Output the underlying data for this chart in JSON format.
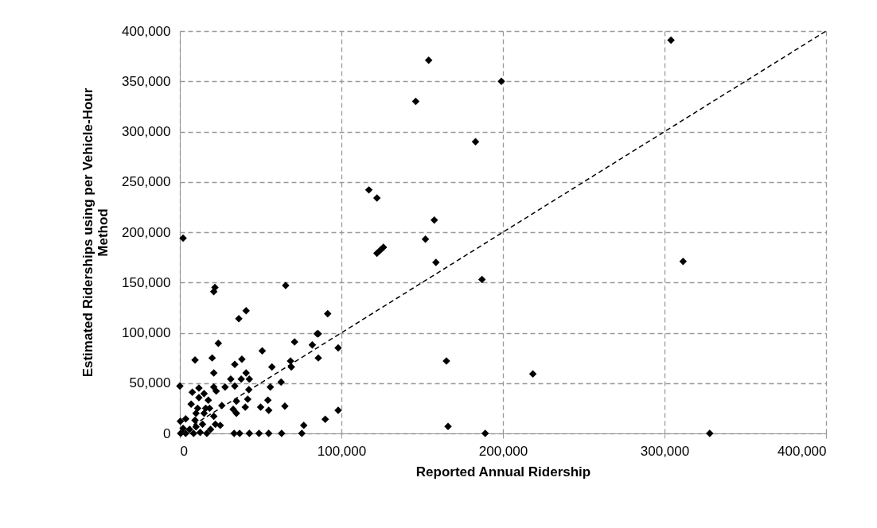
{
  "chart_data": {
    "type": "scatter",
    "xlabel": "Reported Annual Ridership",
    "ylabel": "Estimated Riderships using per Vehicle-Hour Method",
    "xlim": [
      0,
      400000
    ],
    "ylim": [
      0,
      400000
    ],
    "xticks": [
      0,
      {
        "value": 100000,
        "label": "100,000"
      },
      {
        "value": 200000,
        "label": "200,000"
      },
      {
        "value": 300000,
        "label": "300,000"
      },
      {
        "value": 400000,
        "label": "400,000"
      }
    ],
    "yticks": [
      0,
      {
        "value": 50000,
        "label": "50,000"
      },
      {
        "value": 100000,
        "label": "100,000"
      },
      {
        "value": 150000,
        "label": "150,000"
      },
      {
        "value": 200000,
        "label": "200,000"
      },
      {
        "value": 250000,
        "label": "250,000"
      },
      {
        "value": 300000,
        "label": "300,000"
      },
      {
        "value": 350000,
        "label": "350,000"
      },
      {
        "value": 400000,
        "label": "400,000"
      }
    ],
    "grid": true,
    "series": [
      {
        "color": "#000000",
        "marker": "diamond",
        "x": [
          2000,
          154000,
          199000,
          146000,
          183000,
          117000,
          122000,
          157500,
          152000,
          122000,
          124000,
          126000,
          158500,
          187000,
          304000,
          311500,
          91500,
          85700,
          98000,
          85700,
          165000,
          218500,
          90000,
          98000,
          166000,
          189000,
          328000,
          0,
          21000,
          21700,
          65500,
          36500,
          41000,
          23800,
          9400,
          20000,
          51000,
          71000,
          85000,
          82000,
          21000,
          34000,
          38400,
          41000,
          43000,
          38000,
          31500,
          34000,
          42700,
          42000,
          40500,
          35000,
          33000,
          35000,
          57000,
          56000,
          54500,
          55000,
          50000,
          68500,
          69000,
          62700,
          65000,
          28000,
          26000,
          25000,
          76700,
          75500,
          33600,
          37000,
          43000,
          49000,
          55000,
          63000,
          7700,
          11800,
          15000,
          21000,
          22500,
          17600,
          7000,
          11800,
          16000,
          21000,
          22000,
          10000,
          3600,
          300,
          2000,
          6000,
          10000,
          12600,
          16700,
          500,
          3600,
          8500,
          14000,
          19000,
          9400,
          15000,
          18400,
          11000
        ],
        "values": [
          194000,
          371000,
          350000,
          330000,
          290000,
          242000,
          234000,
          212000,
          193000,
          179000,
          182000,
          185000,
          170000,
          153000,
          391000,
          171000,
          119000,
          99000,
          85000,
          75000,
          72000,
          59000,
          14000,
          23000,
          7000,
          0,
          0,
          47000,
          141000,
          145000,
          147000,
          114000,
          122000,
          89500,
          73000,
          75000,
          82000,
          91000,
          99000,
          88000,
          60000,
          68500,
          73700,
          60000,
          54000,
          54000,
          54000,
          47000,
          43500,
          34000,
          26000,
          20000,
          24000,
          32000,
          66000,
          46000,
          33000,
          23000,
          26000,
          72000,
          66000,
          51000,
          27000,
          46000,
          27600,
          8000,
          8000,
          0,
          0,
          0,
          0,
          0,
          0,
          0,
          41000,
          45000,
          39500,
          46000,
          42000,
          33000,
          29000,
          35500,
          25000,
          17000,
          9000,
          20000,
          14500,
          12000,
          5000,
          4000,
          6500,
          1000,
          0,
          0,
          0,
          0,
          9000,
          4000,
          13000,
          20000,
          25000,
          25000
        ]
      },
      {
        "type": "line",
        "color": "#000000",
        "line_style": "dashed",
        "x": [
          0,
          400000
        ],
        "values": [
          0,
          400000
        ]
      }
    ]
  }
}
